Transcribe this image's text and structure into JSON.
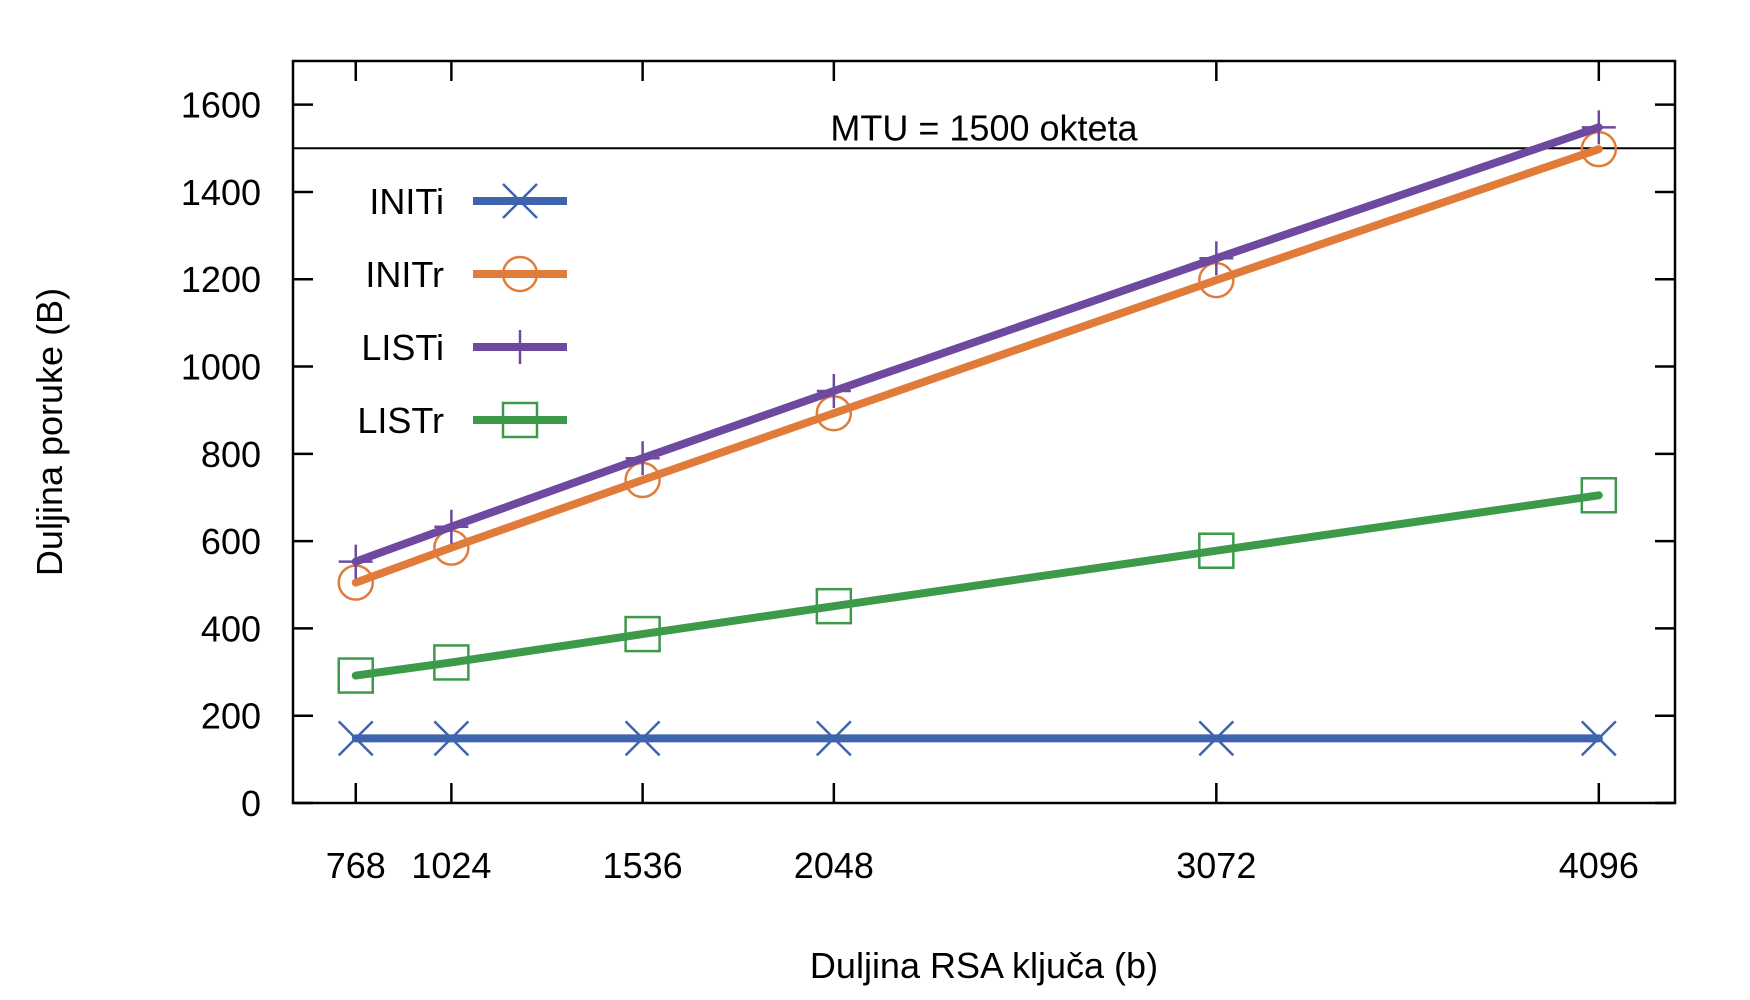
{
  "chart_data": {
    "type": "line",
    "xlabel": "Duljina RSA ključa (b)",
    "ylabel": "Duljina poruke (B)",
    "x": [
      768,
      1024,
      1536,
      2048,
      3072,
      4096
    ],
    "x_ticks": [
      "768",
      "1024",
      "1536",
      "2048",
      "3072",
      "4096"
    ],
    "xlim": [
      600,
      4300
    ],
    "y_ticks": [
      "0",
      "200",
      "400",
      "600",
      "800",
      "1000",
      "1200",
      "1400",
      "1600"
    ],
    "ylim": [
      0,
      1700
    ],
    "reference_line": {
      "y": 1500,
      "label": "MTU = 1500 okteta"
    },
    "grid": false,
    "legend_position": "top-left",
    "series": [
      {
        "name": "INITi",
        "marker": "x",
        "color": "#3d64ad",
        "values": [
          148,
          148,
          148,
          148,
          148,
          148
        ]
      },
      {
        "name": "INITr",
        "marker": "circle",
        "color": "#e07b39",
        "values": [
          505,
          585,
          740,
          893,
          1198,
          1498
        ]
      },
      {
        "name": "LISTi",
        "marker": "plus",
        "color": "#6d4aa0",
        "values": [
          553,
          633,
          790,
          944,
          1248,
          1548
        ]
      },
      {
        "name": "LISTr",
        "marker": "square",
        "color": "#3d9a4a",
        "values": [
          292,
          322,
          387,
          451,
          578,
          705
        ]
      }
    ]
  }
}
